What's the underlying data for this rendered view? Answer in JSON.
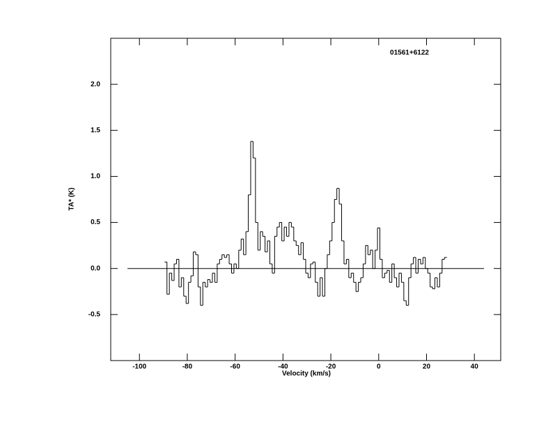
{
  "chart_data": {
    "type": "step",
    "title": "01561+6122",
    "xlabel": "Velocity (km/s)",
    "ylabel": "TA* (K)",
    "xlim": [
      -112,
      51
    ],
    "ylim": [
      -1.0,
      2.5
    ],
    "xticks": [
      -100,
      -80,
      -60,
      -40,
      -20,
      0,
      20,
      40
    ],
    "yticks": [
      {
        "value": -0.5,
        "label": "-0.5"
      },
      {
        "value": 0,
        "label": "0.0"
      },
      {
        "value": 0.5,
        "label": "0.5"
      },
      {
        "value": 1,
        "label": "1.0"
      },
      {
        "value": 1.5,
        "label": "1.5"
      },
      {
        "value": 2,
        "label": "2.0"
      }
    ],
    "zero_line": [
      -105,
      44
    ],
    "color": "#000000",
    "x": [
      -89,
      -88,
      -87,
      -86,
      -85,
      -84,
      -83,
      -82,
      -81,
      -80,
      -79,
      -78,
      -77,
      -76,
      -75,
      -74,
      -73,
      -72,
      -71,
      -70,
      -69,
      -68,
      -67,
      -66,
      -65,
      -64,
      -63,
      -62,
      -61,
      -60,
      -59,
      -58,
      -57,
      -56,
      -55,
      -54,
      -53,
      -52,
      -51,
      -50,
      -49,
      -48,
      -47,
      -46,
      -45,
      -44,
      -43,
      -42,
      -41,
      -40,
      -39,
      -38,
      -37,
      -36,
      -35,
      -34,
      -33,
      -32,
      -31,
      -30,
      -29,
      -28,
      -27,
      -26,
      -25,
      -24,
      -23,
      -22,
      -21,
      -20,
      -19,
      -18,
      -17,
      -16,
      -15,
      -14,
      -13,
      -12,
      -11,
      -10,
      -9,
      -8,
      -7,
      -6,
      -5,
      -4,
      -3,
      -2,
      -1,
      0,
      1,
      2,
      3,
      4,
      5,
      6,
      7,
      8,
      9,
      10,
      11,
      12,
      13,
      14,
      15,
      16,
      17,
      18,
      19,
      20,
      21,
      22,
      23,
      24,
      25,
      26,
      27,
      28
    ],
    "values": [
      0.07,
      -0.28,
      -0.05,
      -0.13,
      0.05,
      0.1,
      -0.2,
      -0.1,
      -0.3,
      -0.38,
      -0.15,
      -0.08,
      0.18,
      0.15,
      -0.2,
      -0.4,
      -0.15,
      -0.2,
      -0.12,
      -0.15,
      -0.05,
      -0.15,
      0.05,
      0.1,
      0.15,
      0.12,
      0.15,
      0.05,
      -0.05,
      0.05,
      0.0,
      0.2,
      0.32,
      0.15,
      0.4,
      0.8,
      1.38,
      1.2,
      0.5,
      0.2,
      0.4,
      0.35,
      0.18,
      0.3,
      0.05,
      -0.05,
      0.35,
      0.45,
      0.5,
      0.3,
      0.45,
      0.35,
      0.5,
      0.45,
      0.3,
      0.25,
      0.15,
      0.28,
      0.1,
      -0.05,
      -0.1,
      0.05,
      0.07,
      -0.15,
      -0.3,
      -0.1,
      -0.3,
      0.0,
      0.15,
      0.3,
      0.5,
      0.75,
      0.87,
      0.7,
      0.3,
      0.05,
      0.1,
      -0.1,
      -0.05,
      -0.15,
      -0.25,
      -0.15,
      -0.1,
      0.05,
      0.25,
      0.15,
      0.2,
      0.0,
      0.2,
      0.44,
      0.1,
      -0.1,
      -0.05,
      -0.02,
      -0.15,
      0.05,
      -0.1,
      -0.2,
      -0.05,
      -0.15,
      -0.35,
      -0.4,
      -0.1,
      0.05,
      0.12,
      -0.05,
      0.1,
      0.05,
      0.12,
      0.0,
      -0.05,
      -0.2,
      -0.22,
      -0.1,
      -0.2,
      -0.05,
      0.1,
      0.12
    ]
  }
}
